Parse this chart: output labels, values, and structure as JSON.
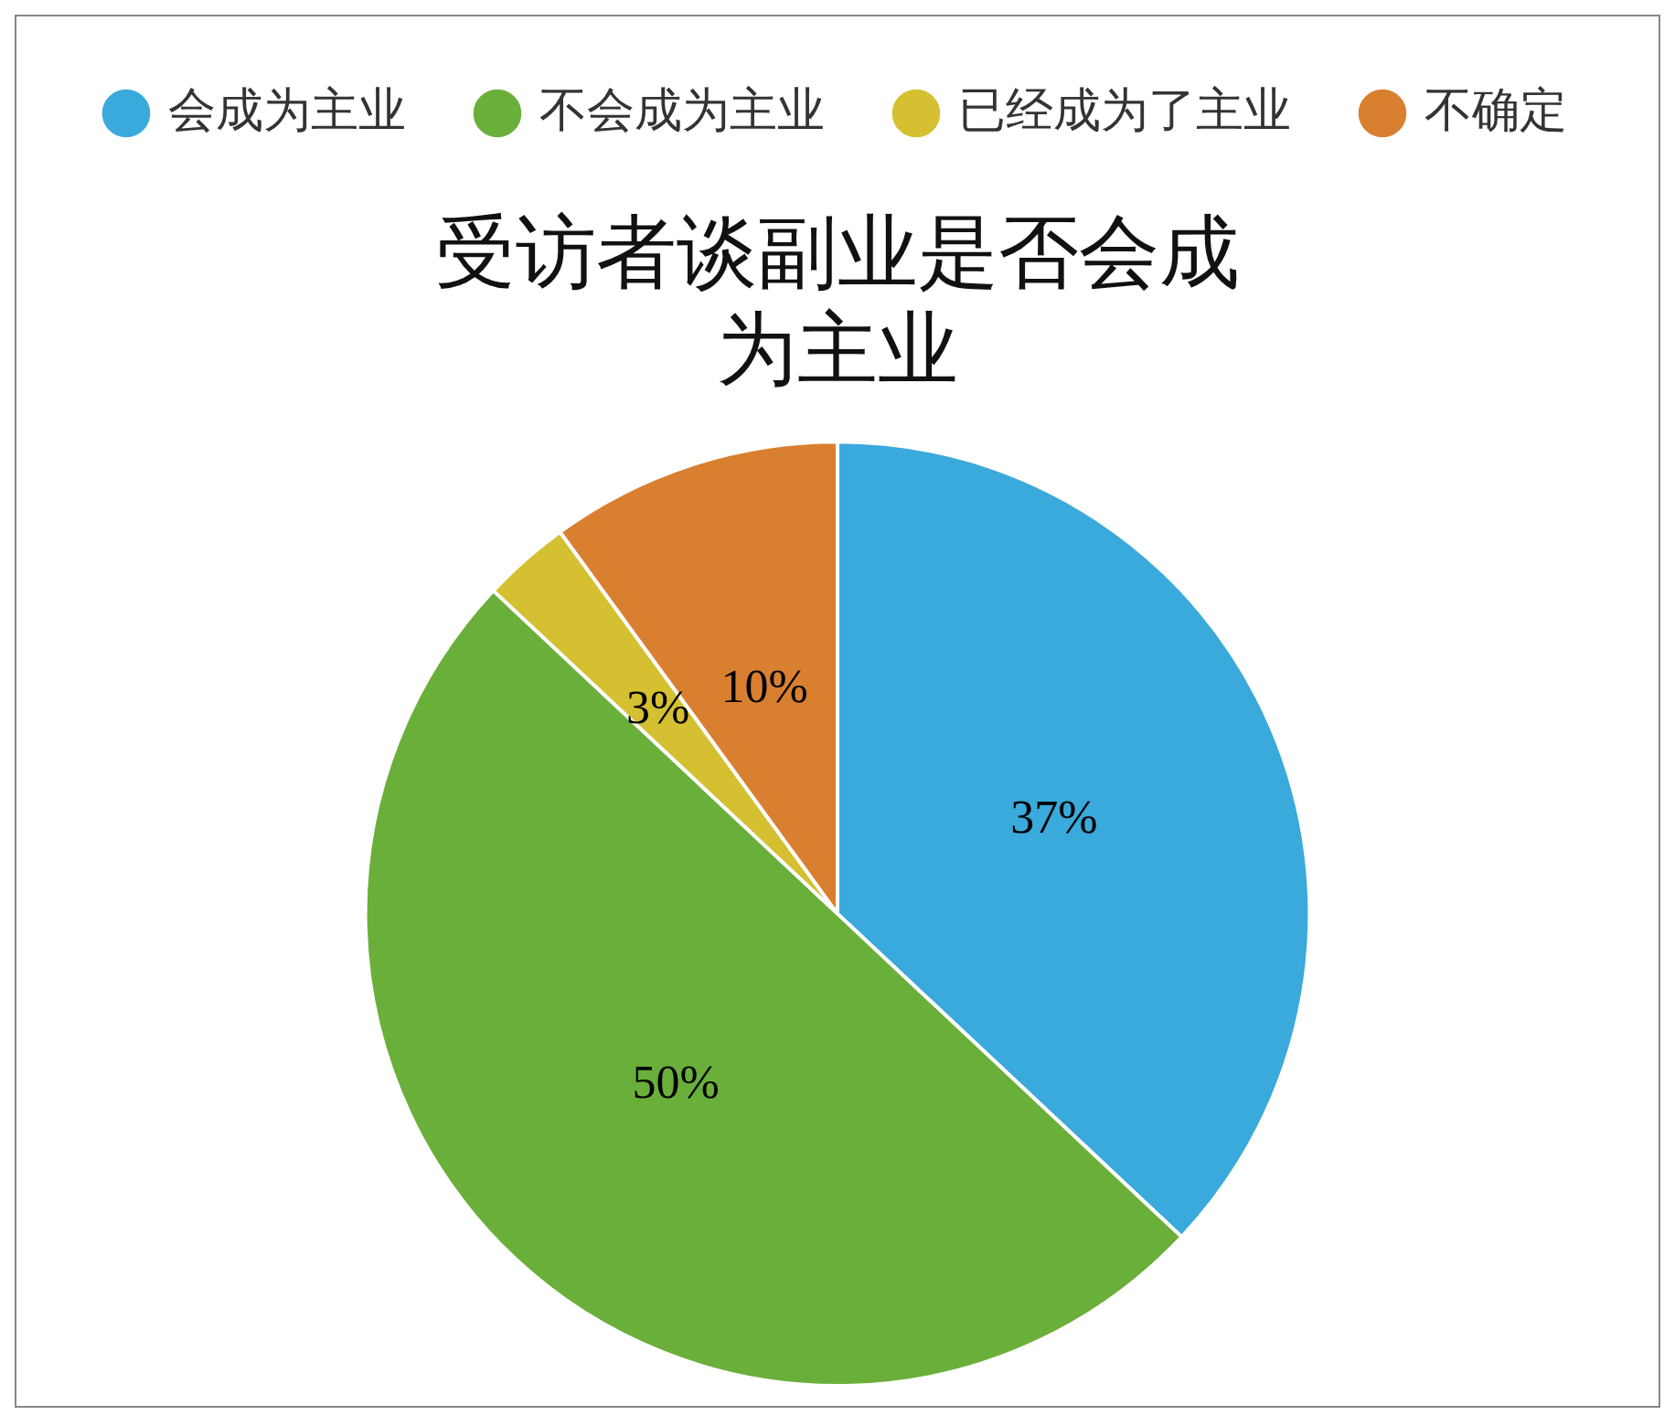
{
  "chart_data": {
    "type": "pie",
    "title": "受访者谈副业是否会成为主业",
    "categories": [
      "会成为主业",
      "不会成为主业",
      "已经成为了主业",
      "不确定"
    ],
    "values": [
      37,
      50,
      3,
      10
    ],
    "colors": [
      "#3aa9dc",
      "#6aaf3a",
      "#d4c030",
      "#d98030"
    ],
    "value_labels": [
      "37%",
      "50%",
      "3%",
      "10%"
    ],
    "legend": "top left"
  }
}
